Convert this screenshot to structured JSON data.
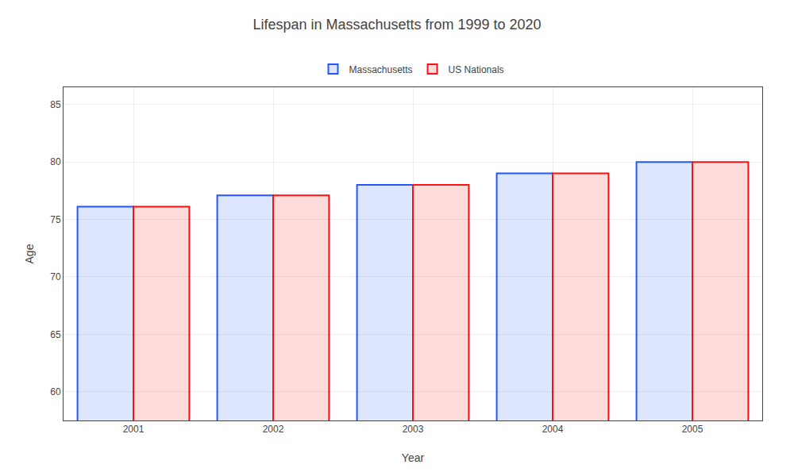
{
  "chart_data": {
    "type": "bar",
    "title": "Lifespan in Massachusetts from 1999 to 2020",
    "xlabel": "Year",
    "ylabel": "Age",
    "categories": [
      "2001",
      "2002",
      "2003",
      "2004",
      "2005"
    ],
    "series": [
      {
        "name": "Massachusetts",
        "color": "#2255ff",
        "values": [
          76.1,
          77.1,
          78.0,
          79.0,
          80.0
        ]
      },
      {
        "name": "US Nationals",
        "color": "#ff1111",
        "values": [
          76.1,
          77.1,
          78.0,
          79.0,
          80.0
        ]
      }
    ],
    "ylim": [
      57.5,
      86.5
    ],
    "yticks": [
      60,
      65,
      70,
      75,
      80,
      85
    ],
    "grid": true,
    "legend": "top"
  }
}
